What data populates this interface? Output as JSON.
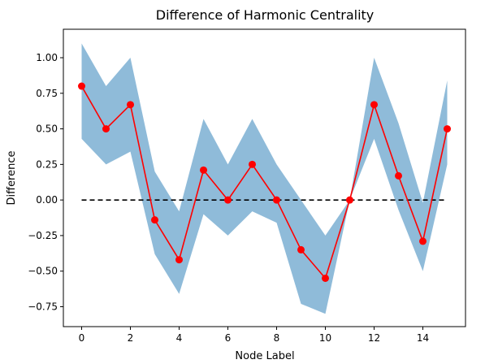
{
  "chart_data": {
    "type": "line",
    "title": "Difference of Harmonic Centrality",
    "xlabel": "Node Label",
    "ylabel": "Difference",
    "xlim": [
      -0.75,
      15.75
    ],
    "ylim": [
      -0.89,
      1.2
    ],
    "x_ticks": [
      0,
      2,
      4,
      6,
      8,
      10,
      12,
      14
    ],
    "y_ticks": [
      -0.75,
      -0.5,
      -0.25,
      0.0,
      0.25,
      0.5,
      0.75,
      1.0
    ],
    "x_tick_labels": [
      "0",
      "2",
      "4",
      "6",
      "8",
      "10",
      "12",
      "14"
    ],
    "y_tick_labels": [
      "−0.75",
      "−0.50",
      "−0.25",
      "0.00",
      "0.25",
      "0.50",
      "0.75",
      "1.00"
    ],
    "grid": false,
    "x": [
      0,
      1,
      2,
      3,
      4,
      5,
      6,
      7,
      8,
      9,
      10,
      11,
      12,
      13,
      14,
      15
    ],
    "series": [
      {
        "values": [
          0.8,
          0.5,
          0.67,
          -0.14,
          -0.42,
          0.21,
          0.0,
          0.25,
          0.0,
          -0.35,
          -0.55,
          0.0,
          0.67,
          0.17,
          -0.29,
          0.5
        ],
        "color": "#ff0000",
        "marker": "circle"
      }
    ],
    "band": {
      "upper": [
        1.1,
        0.8,
        1.0,
        0.2,
        -0.08,
        0.57,
        0.25,
        0.57,
        0.25,
        0.0,
        -0.25,
        0.0,
        1.0,
        0.54,
        -0.02,
        0.84
      ],
      "lower": [
        0.43,
        0.25,
        0.34,
        -0.38,
        -0.66,
        -0.1,
        -0.25,
        -0.08,
        -0.16,
        -0.73,
        -0.8,
        0.0,
        0.43,
        -0.07,
        -0.5,
        0.25
      ],
      "color": "#1f77b4",
      "opacity": 0.5
    },
    "reference_line": {
      "y": 0.0,
      "x_range": [
        0,
        15
      ],
      "style": "dashed",
      "color": "#000000"
    }
  }
}
